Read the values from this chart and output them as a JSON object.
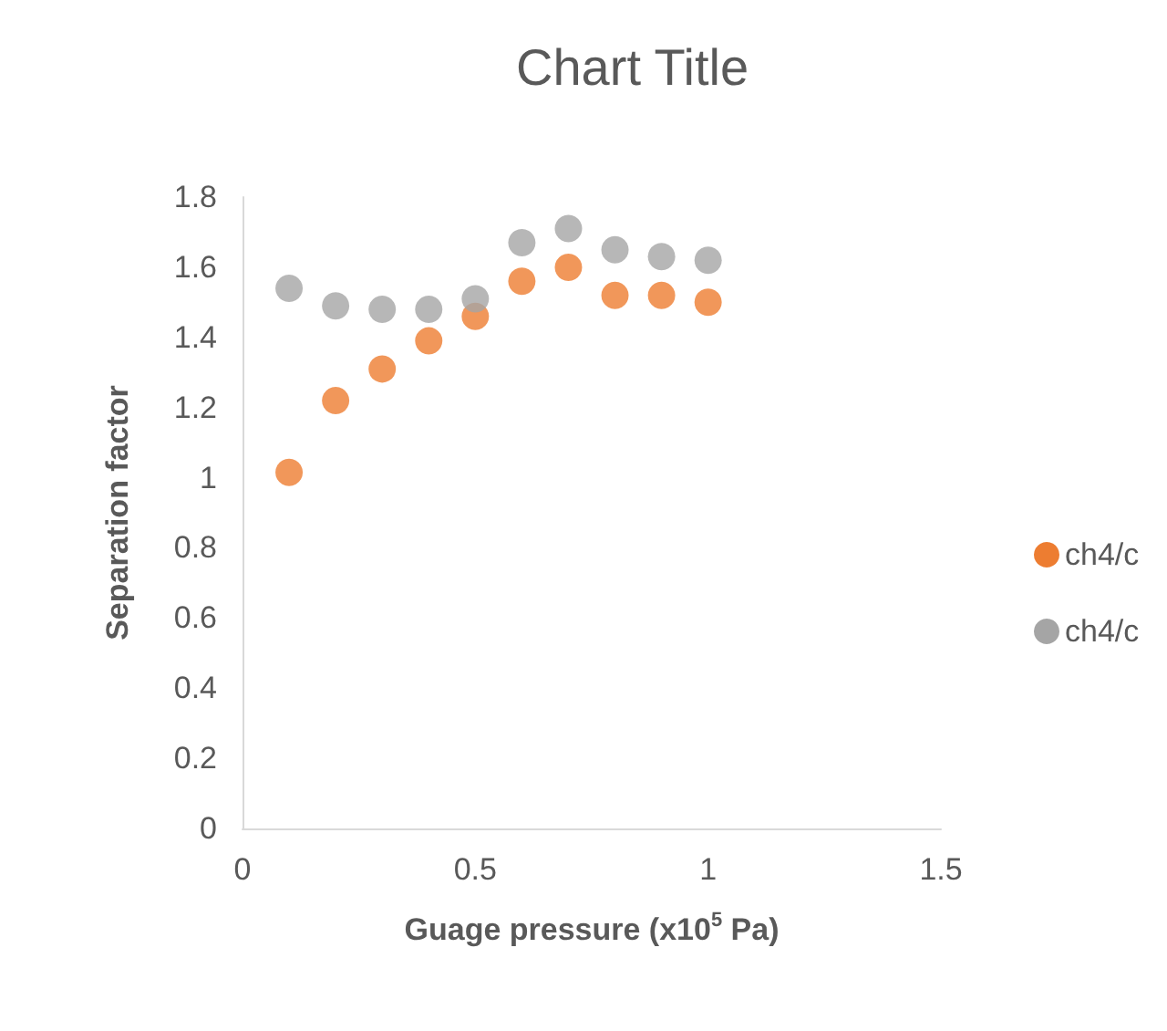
{
  "chart_data": {
    "type": "scatter",
    "title": "Chart Title",
    "xlabel": "Guage pressure (x10$^{5}$ Pa)",
    "ylabel": "Separation factor",
    "x": [
      0.1,
      0.2,
      0.3,
      0.4,
      0.5,
      0.6,
      0.7,
      0.8,
      0.9,
      1.0
    ],
    "series": [
      {
        "name": "ch4/c",
        "color": "#ed7d31",
        "values": [
          1.015,
          1.22,
          1.31,
          1.39,
          1.46,
          1.56,
          1.6,
          1.52,
          1.52,
          1.5
        ]
      },
      {
        "name": "ch4/c",
        "color": "#a5a5a5",
        "values": [
          1.54,
          1.49,
          1.48,
          1.48,
          1.51,
          1.67,
          1.71,
          1.65,
          1.63,
          1.62
        ]
      }
    ],
    "xlim": [
      0,
      1.5
    ],
    "xticks": [
      0,
      0.5,
      1,
      1.5
    ],
    "ylim": [
      0,
      1.8
    ],
    "yticks": [
      0,
      0.2,
      0.4,
      0.6,
      0.8,
      1,
      1.2,
      1.4,
      1.6,
      1.8
    ],
    "grid": false,
    "legend": "right",
    "marker": "circle"
  }
}
